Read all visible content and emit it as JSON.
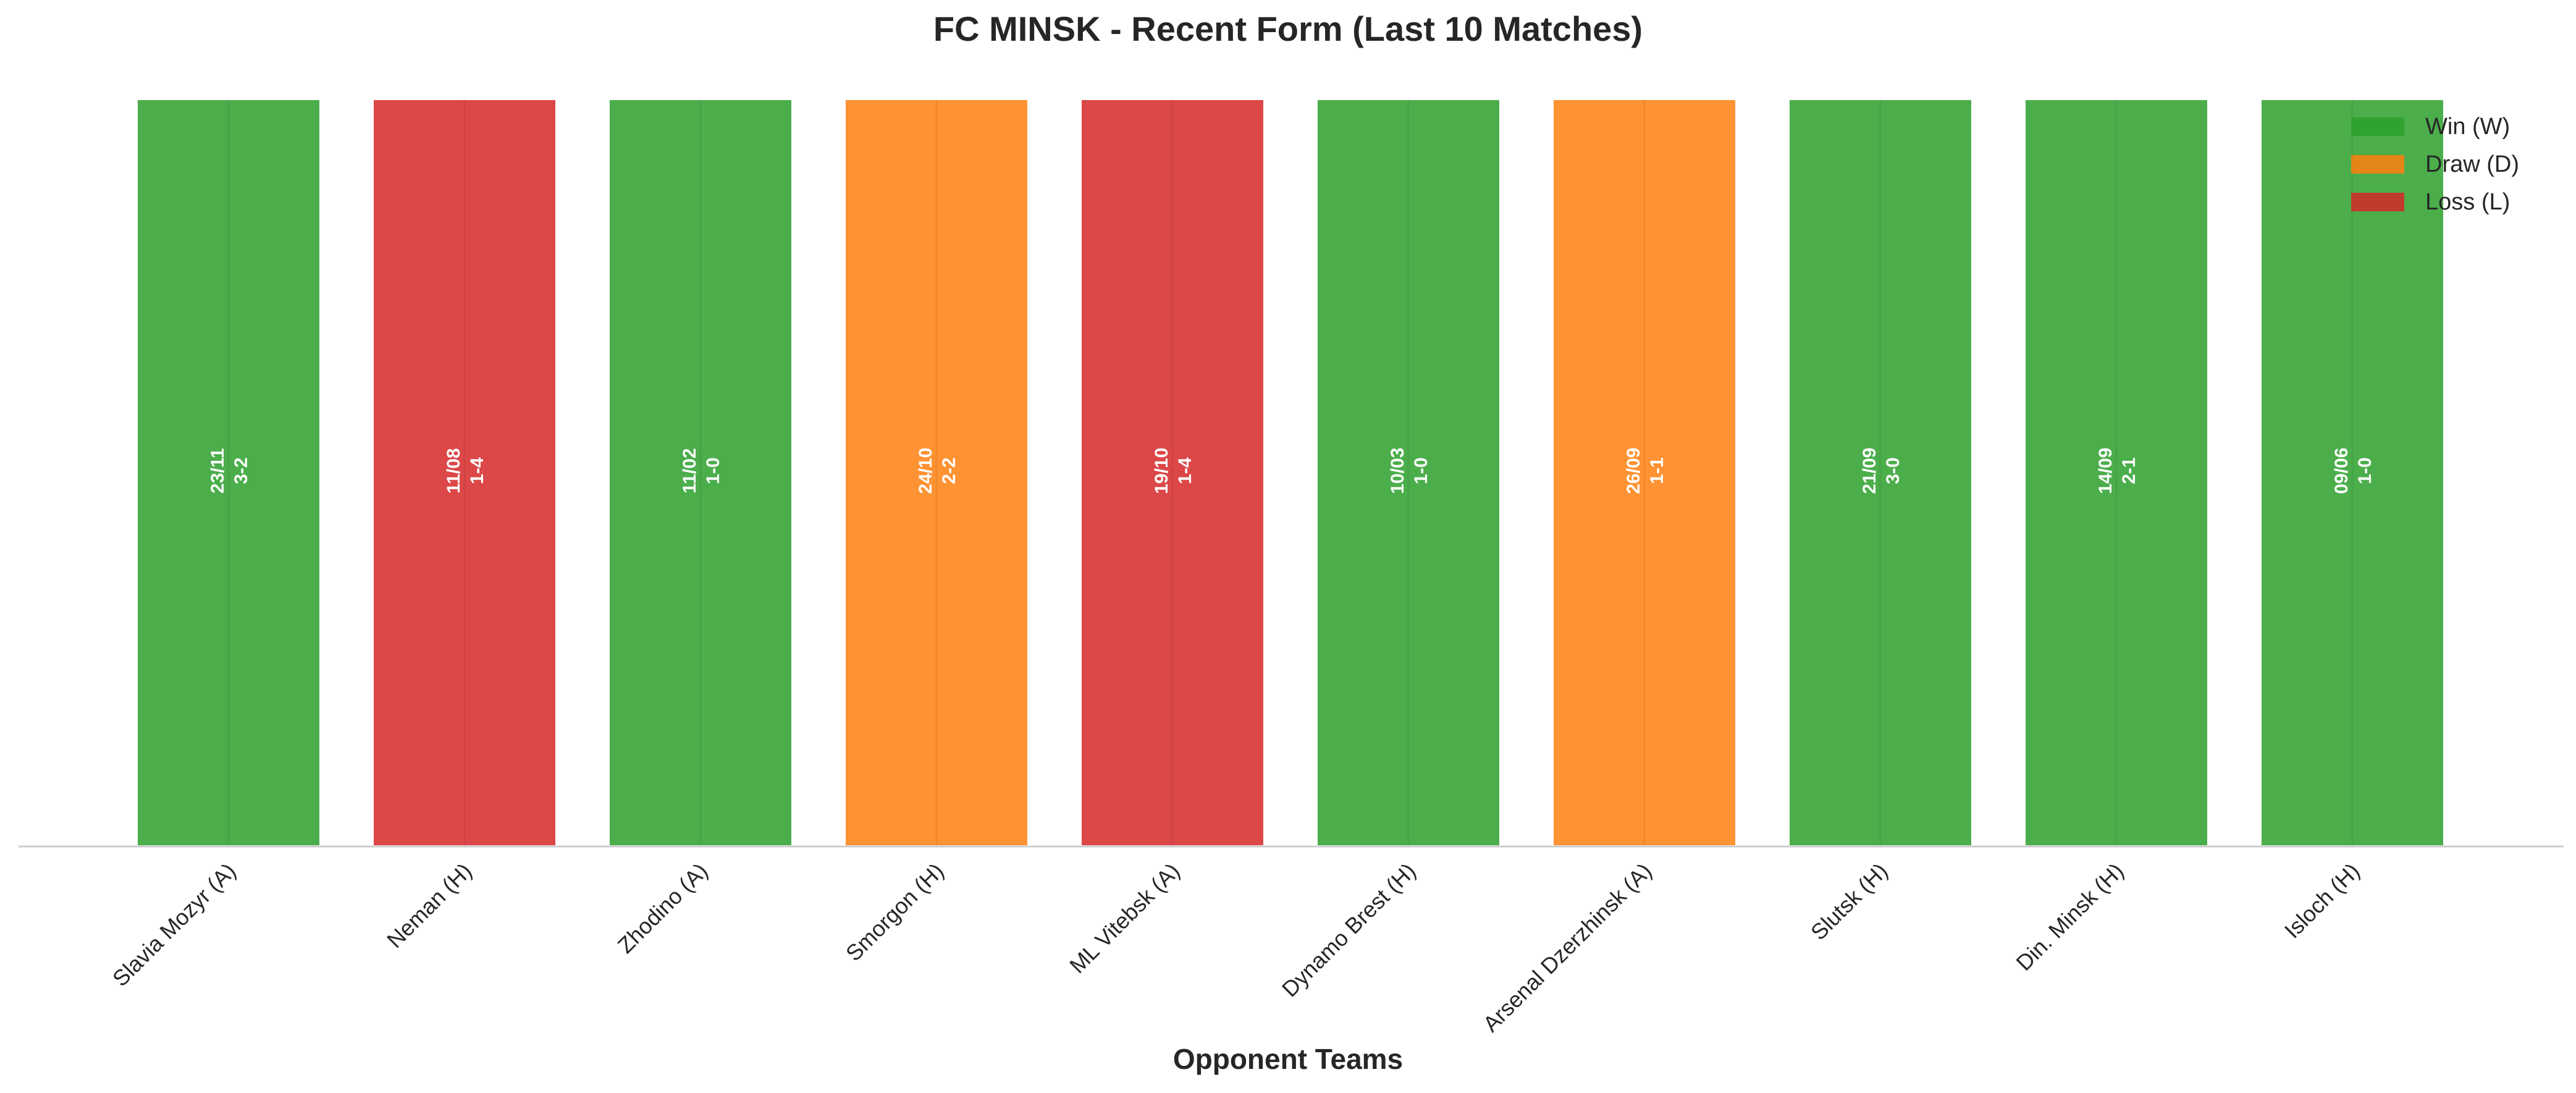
{
  "chart_data": {
    "type": "bar",
    "title": "FC MINSK - Recent Form (Last 10 Matches)",
    "xlabel": "Opponent Teams",
    "ylabel": "",
    "ylim": [
      0,
      1
    ],
    "grid": false,
    "legend_position": "top-right",
    "categories": [
      "Slavia Mozyr (A)",
      "Neman (H)",
      "Zhodino (A)",
      "Smorgon (H)",
      "ML Vitebsk (A)",
      "Dynamo Brest (H)",
      "Arsenal Dzerzhinsk (A)",
      "Slutsk (H)",
      "Din. Minsk (H)",
      "Isloch (H)"
    ],
    "values": [
      1,
      1,
      1,
      1,
      1,
      1,
      1,
      1,
      1,
      1
    ],
    "results": [
      "W",
      "L",
      "W",
      "D",
      "L",
      "W",
      "D",
      "W",
      "W",
      "W"
    ],
    "dates": [
      "23/11",
      "11/08",
      "11/02",
      "24/10",
      "19/10",
      "10/03",
      "26/09",
      "21/09",
      "14/09",
      "09/06"
    ],
    "scores": [
      "3-2",
      "1-4",
      "1-0",
      "2-2",
      "1-4",
      "1-0",
      "1-1",
      "3-0",
      "2-1",
      "1-0"
    ],
    "legend": [
      {
        "key": "W",
        "label": "Win (W)",
        "color": "#2ca02c"
      },
      {
        "key": "D",
        "label": "Draw (D)",
        "color": "#ff7f0e"
      },
      {
        "key": "L",
        "label": "Loss (L)",
        "color": "#d62728"
      }
    ]
  }
}
